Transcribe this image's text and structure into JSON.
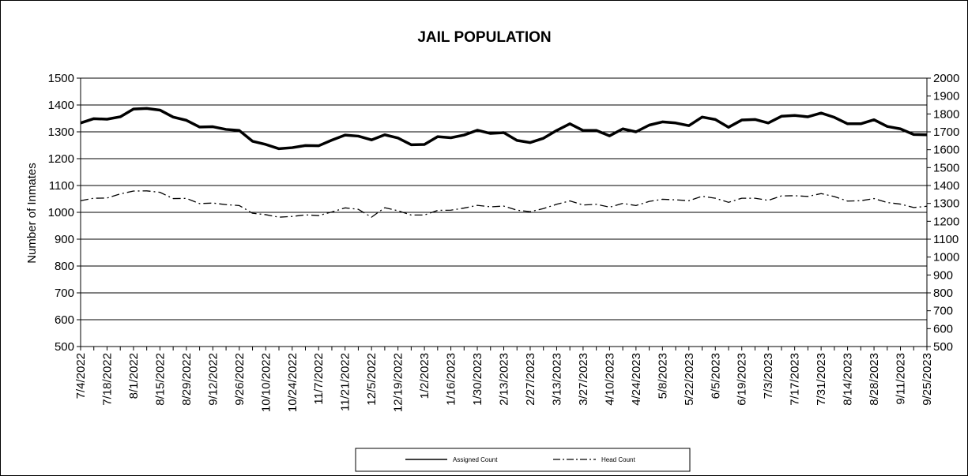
{
  "chart_data": {
    "type": "line",
    "title": "JAIL POPULATION",
    "ylabel": "Number of Inmates",
    "y2label": "",
    "xlabel": "",
    "ylim": [
      500,
      1500
    ],
    "yticks": [
      500,
      600,
      700,
      800,
      900,
      1000,
      1100,
      1200,
      1300,
      1400,
      1500
    ],
    "y2lim": [
      500,
      2000
    ],
    "y2ticks": [
      500,
      600,
      700,
      800,
      900,
      1000,
      1100,
      1200,
      1300,
      1400,
      1500,
      1600,
      1700,
      1800,
      1900,
      2000
    ],
    "grid": true,
    "legend_position": "bottom",
    "x_tick_labels": [
      "7/4/2022",
      "7/18/2022",
      "8/1/2022",
      "8/15/2022",
      "8/29/2022",
      "9/12/2022",
      "9/26/2022",
      "10/10/2022",
      "10/24/2022",
      "11/7/2022",
      "11/21/2022",
      "12/5/2022",
      "12/19/2022",
      "1/2/2023",
      "1/16/2023",
      "1/30/2023",
      "2/13/2023",
      "2/27/2023",
      "3/13/2023",
      "3/27/2023",
      "4/10/2023",
      "4/24/2023",
      "5/8/2023",
      "5/22/2023",
      "6/5/2023",
      "6/19/2023",
      "7/3/2023",
      "7/17/2023",
      "7/31/2023",
      "8/14/2023",
      "8/28/2023",
      "9/11/2023",
      "9/25/2023"
    ],
    "x": [
      "7/4/2022",
      "7/11/2022",
      "7/18/2022",
      "7/25/2022",
      "8/1/2022",
      "8/8/2022",
      "8/15/2022",
      "8/22/2022",
      "8/29/2022",
      "9/5/2022",
      "9/12/2022",
      "9/19/2022",
      "9/26/2022",
      "10/3/2022",
      "10/10/2022",
      "10/17/2022",
      "10/24/2022",
      "10/31/2022",
      "11/7/2022",
      "11/14/2022",
      "11/21/2022",
      "11/28/2022",
      "12/5/2022",
      "12/12/2022",
      "12/19/2022",
      "12/26/2022",
      "1/2/2023",
      "1/9/2023",
      "1/16/2023",
      "1/23/2023",
      "1/30/2023",
      "2/6/2023",
      "2/13/2023",
      "2/20/2023",
      "2/27/2023",
      "3/6/2023",
      "3/13/2023",
      "3/20/2023",
      "3/27/2023",
      "4/3/2023",
      "4/10/2023",
      "4/17/2023",
      "4/24/2023",
      "5/1/2023",
      "5/8/2023",
      "5/15/2023",
      "5/22/2023",
      "5/29/2023",
      "6/5/2023",
      "6/12/2023",
      "6/19/2023",
      "6/26/2023",
      "7/3/2023",
      "7/10/2023",
      "7/17/2023",
      "7/24/2023",
      "7/31/2023",
      "8/7/2023",
      "8/14/2023",
      "8/21/2023",
      "8/28/2023",
      "9/4/2023",
      "9/11/2023",
      "9/18/2023",
      "9/25/2023"
    ],
    "series": [
      {
        "name": "Assigned Count",
        "axis": "left",
        "style": "solid-thick",
        "color": "#000000",
        "values": [
          1333,
          1349,
          1347,
          1356,
          1385,
          1387,
          1381,
          1355,
          1343,
          1318,
          1319,
          1309,
          1305,
          1265,
          1253,
          1237,
          1241,
          1249,
          1248,
          1269,
          1288,
          1284,
          1270,
          1289,
          1277,
          1252,
          1253,
          1282,
          1278,
          1288,
          1306,
          1294,
          1297,
          1268,
          1260,
          1276,
          1305,
          1330,
          1305,
          1305,
          1285,
          1311,
          1300,
          1325,
          1337,
          1333,
          1323,
          1355,
          1346,
          1317,
          1344,
          1346,
          1333,
          1358,
          1361,
          1356,
          1370,
          1354,
          1330,
          1330,
          1345,
          1320,
          1311,
          1290,
          1289
        ]
      },
      {
        "name": "Head Count",
        "axis": "right",
        "style": "dash-dot",
        "color": "#000000",
        "values": [
          1315,
          1329,
          1330,
          1353,
          1369,
          1370,
          1362,
          1327,
          1328,
          1299,
          1302,
          1293,
          1288,
          1245,
          1237,
          1223,
          1227,
          1236,
          1232,
          1252,
          1275,
          1267,
          1223,
          1276,
          1259,
          1235,
          1235,
          1261,
          1262,
          1274,
          1289,
          1281,
          1285,
          1262,
          1254,
          1271,
          1295,
          1314,
          1291,
          1295,
          1279,
          1300,
          1288,
          1311,
          1323,
          1320,
          1315,
          1340,
          1329,
          1306,
          1329,
          1329,
          1317,
          1342,
          1343,
          1339,
          1355,
          1338,
          1313,
          1315,
          1327,
          1305,
          1296,
          1277,
          1284
        ]
      }
    ]
  }
}
